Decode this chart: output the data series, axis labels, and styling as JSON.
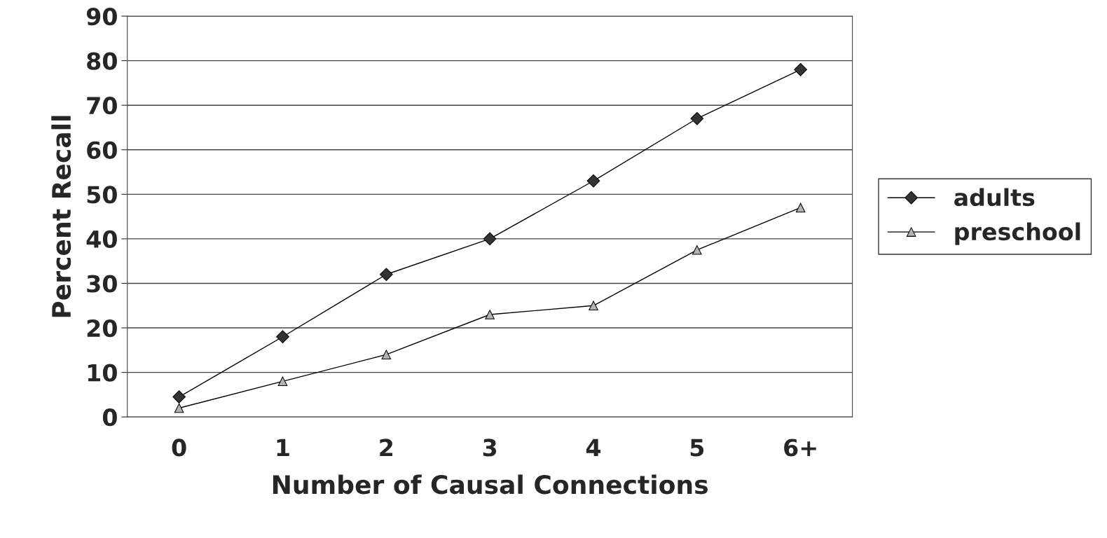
{
  "chart_data": {
    "type": "line",
    "xlabel": "Number of Causal Connections",
    "ylabel": "Percent Recall",
    "categories": [
      "0",
      "1",
      "2",
      "3",
      "4",
      "5",
      "6+"
    ],
    "series": [
      {
        "name": "adults",
        "color": "#333333",
        "marker": "diamond",
        "values": [
          4.5,
          18,
          32,
          40,
          53,
          67,
          78
        ]
      },
      {
        "name": "preschool",
        "color": "#b3b3b3",
        "marker": "triangle",
        "values": [
          2,
          8,
          14,
          23,
          25,
          37.5,
          47
        ]
      }
    ],
    "ylim": [
      0,
      90
    ],
    "yticks": [
      0,
      10,
      20,
      30,
      40,
      50,
      60,
      70,
      80,
      90
    ],
    "grid": "y",
    "legend": "right",
    "line_style": "solid"
  }
}
